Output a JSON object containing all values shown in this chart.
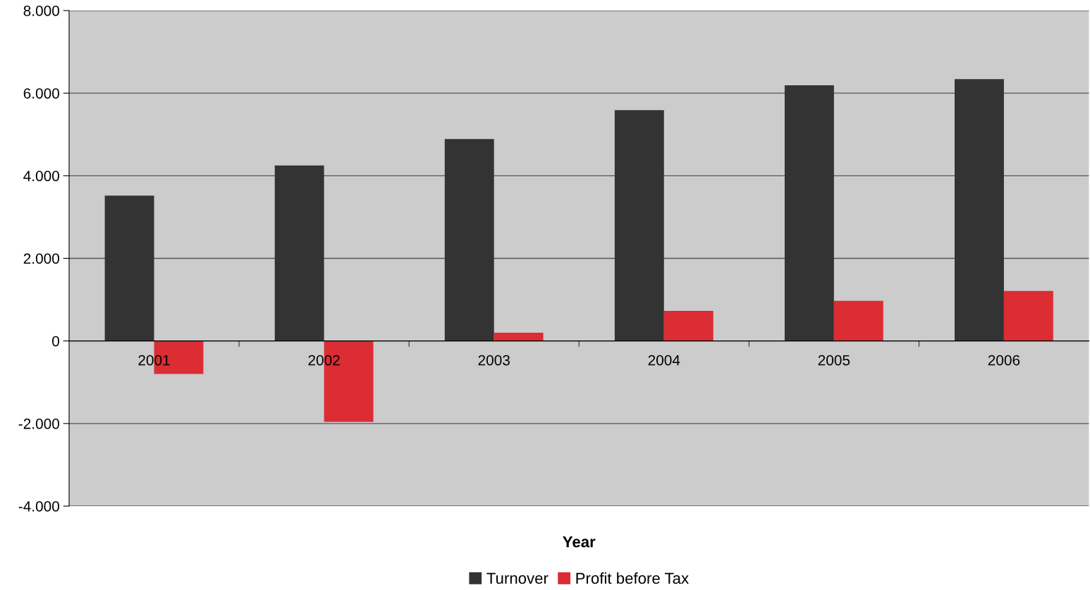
{
  "chart_data": {
    "type": "bar",
    "xlabel": "Year",
    "categories": [
      "2001",
      "2002",
      "2003",
      "2004",
      "2005",
      "2006"
    ],
    "series": [
      {
        "name": "Turnover",
        "color": "#333333",
        "values": [
          3520,
          4250,
          4890,
          5590,
          6190,
          6340
        ]
      },
      {
        "name": "Profit before Tax",
        "color": "#dc2c34",
        "values": [
          -800,
          -1960,
          200,
          730,
          970,
          1210
        ]
      }
    ],
    "ylim": [
      -4000,
      8000
    ],
    "yticks": [
      {
        "value": -4000,
        "label": "-4.000"
      },
      {
        "value": -2000,
        "label": "-2.000"
      },
      0,
      {
        "value": 2000,
        "label": "2.000"
      },
      {
        "value": 4000,
        "label": "4.000"
      },
      {
        "value": 6000,
        "label": "6.000"
      },
      {
        "value": 8000,
        "label": "8.000"
      }
    ],
    "grid": "y",
    "legend": "bottom"
  }
}
